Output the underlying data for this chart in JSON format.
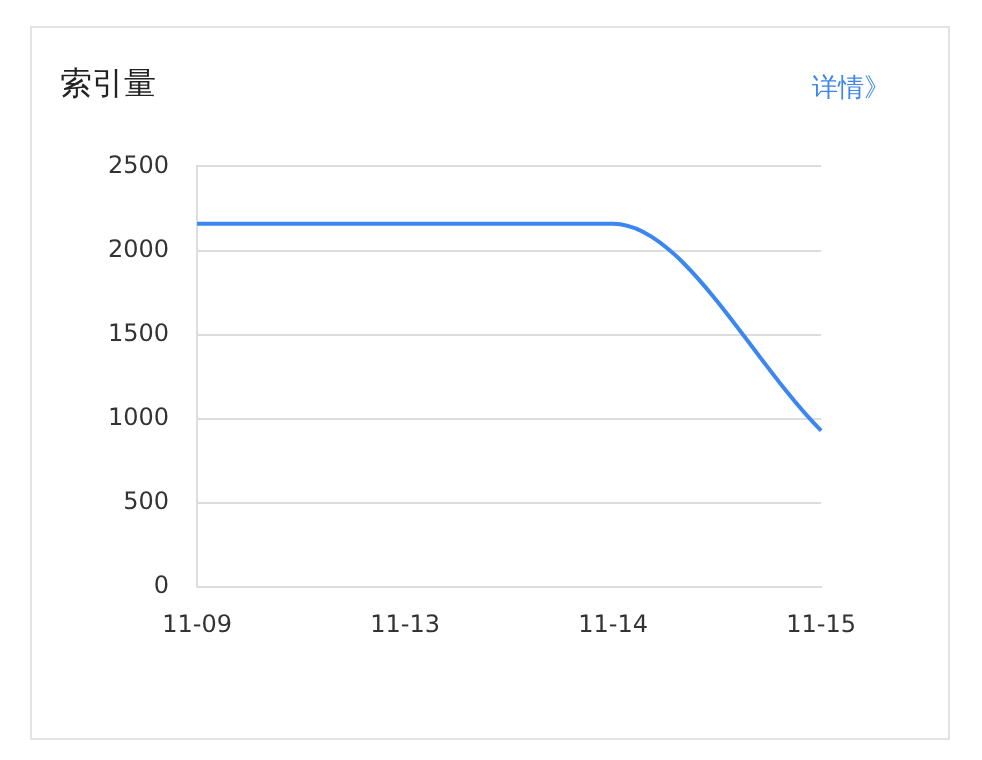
{
  "chart_data": {
    "type": "line",
    "title": "索引量",
    "annotations": [
      "详情》"
    ],
    "categories": [
      "11-09",
      "11-13",
      "11-14",
      "11-15"
    ],
    "series": [
      {
        "color": "#3b86f0",
        "values": [
          2160,
          2160,
          2160,
          930
        ]
      }
    ],
    "ylim": [
      0,
      2500
    ],
    "yticks": [
      0,
      500,
      1000,
      1500,
      2000,
      2500
    ],
    "grid": "y",
    "legend": false,
    "marker": "none",
    "line_style": "solid"
  }
}
